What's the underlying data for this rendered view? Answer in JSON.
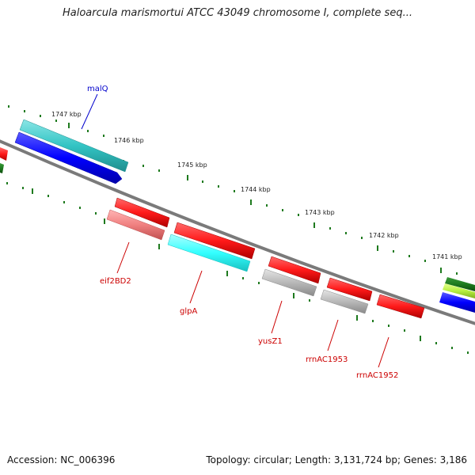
{
  "title": "Haloarcula marismortui ATCC 43049 chromosome I, complete seq...",
  "footer": {
    "accession": "Accession: NC_006396",
    "topology": "Topology: circular; Length: 3,131,724 bp; Genes: 3,186"
  },
  "axis_labels": [
    "1747 kbp",
    "1746 kbp",
    "1745 kbp",
    "1744 kbp",
    "1743 kbp",
    "1742 kbp",
    "1741 kbp"
  ],
  "gene_labels": {
    "malq": "malQ",
    "eif2bd2": "eif2BD2",
    "glpa": "glpA",
    "yusz1": "yusZ1",
    "rrnac1953": "rrnAC1953",
    "rrnac1952": "rrnAC1952"
  },
  "colors": {
    "backbone": "#808080",
    "tick": "#1e7a1e",
    "forward_gene": "#ff1a1a",
    "forward_rna": "#b8b8b8",
    "reverse_gene": "#0000ff",
    "reverse_teal": "#33c4c4",
    "cyan_gene": "#33ffff",
    "pink_gene": "#f08080",
    "label_red": "#cc0000",
    "label_blue": "#0000cc"
  }
}
